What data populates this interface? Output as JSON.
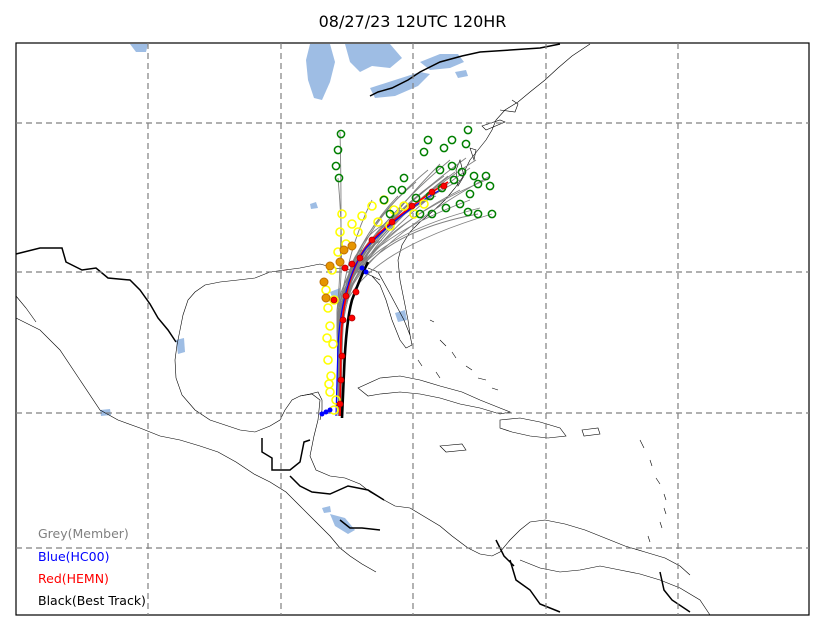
{
  "title": "08/27/23 12UTC 120HR",
  "legend": [
    {
      "label": "Grey(Member)",
      "color": "#808080"
    },
    {
      "label": "Blue(HC00)",
      "color": "#0000ff"
    },
    {
      "label": "Red(HEMN)",
      "color": "#ff0000"
    },
    {
      "label": "Black(Best Track)",
      "color": "#000000"
    }
  ],
  "colors": {
    "water": "#9ebde4",
    "grid": "#808080",
    "member_track": "#808080",
    "marker_outline_green": "#007f00",
    "marker_yellow": "#ffff00",
    "marker_orange": "#e69500"
  }
}
